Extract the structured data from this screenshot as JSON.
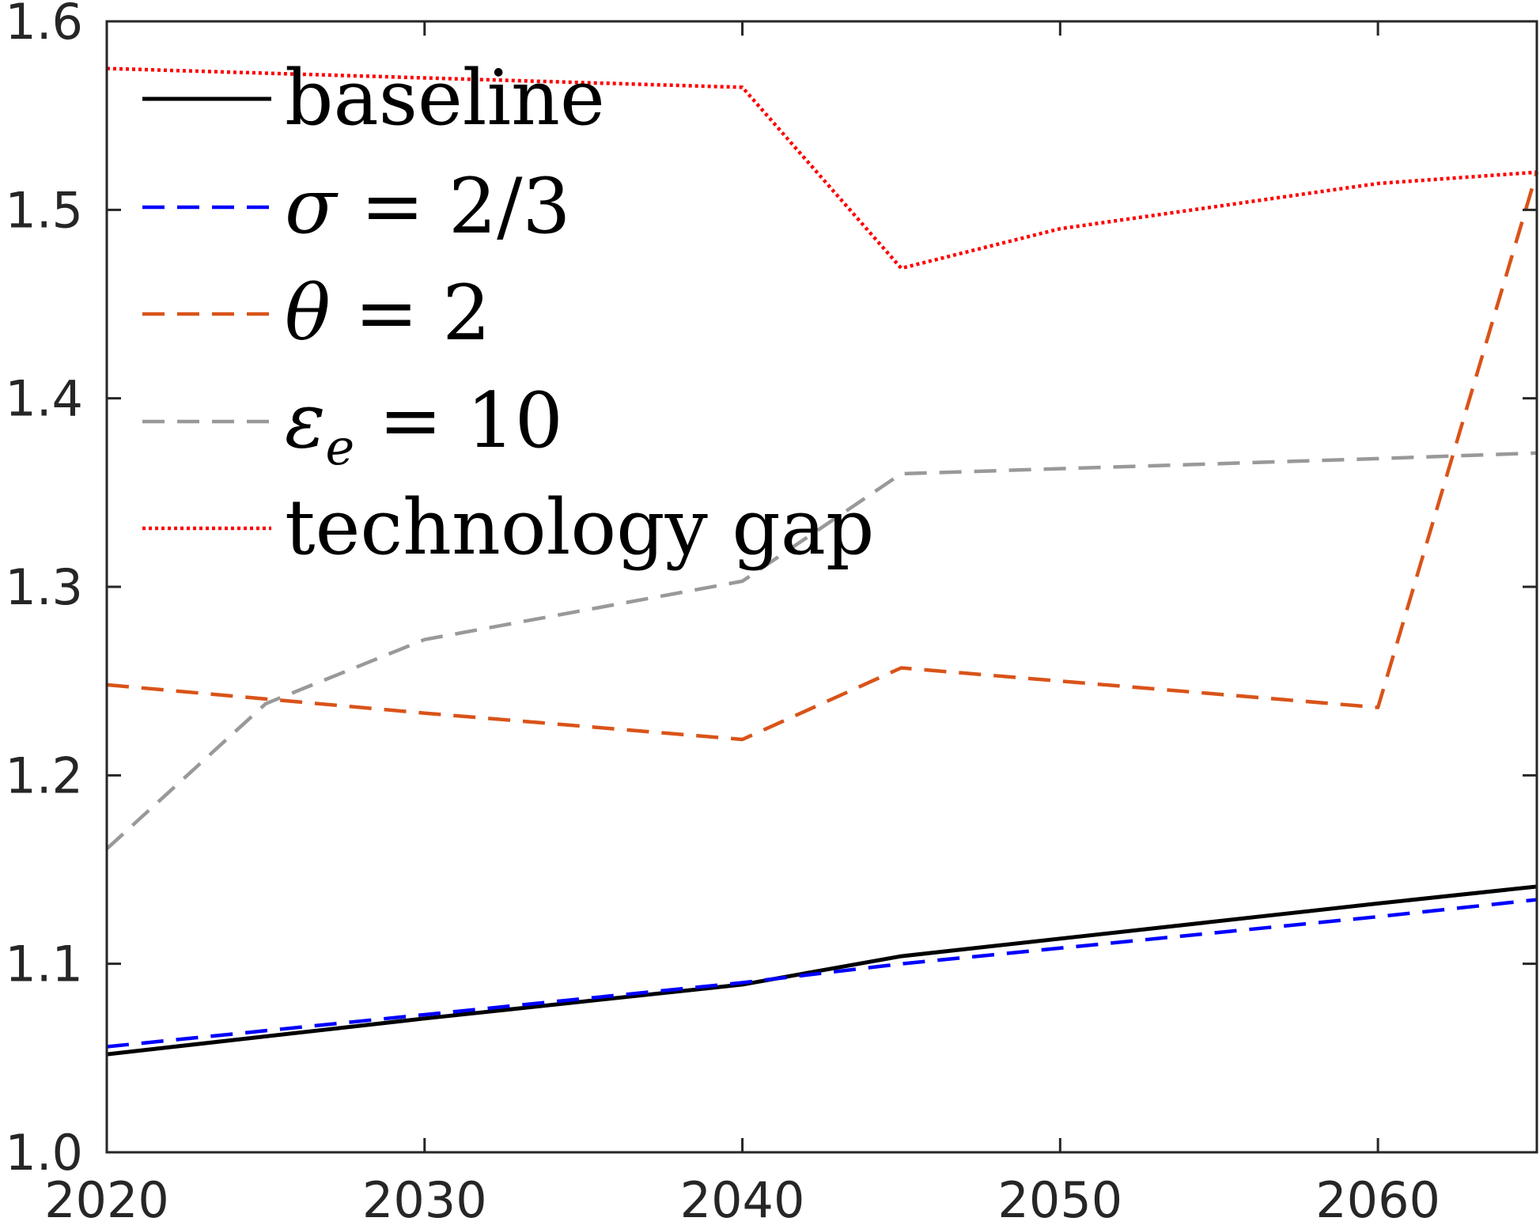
{
  "chart_data": {
    "type": "line",
    "title": "",
    "xlabel": "",
    "ylabel": "",
    "xlim": [
      2020,
      2065
    ],
    "ylim": [
      1.0,
      1.6
    ],
    "xticks": [
      2020,
      2030,
      2040,
      2050,
      2060
    ],
    "xtick_labels": [
      "2020",
      "2030",
      "2040",
      "2050",
      "2060"
    ],
    "yticks": [
      1.0,
      1.1,
      1.2,
      1.3,
      1.4,
      1.5,
      1.6
    ],
    "ytick_labels": [
      "1.0",
      "1.1",
      "1.2",
      "1.3",
      "1.4",
      "1.5",
      "1.6"
    ],
    "grid": false,
    "legend_position": "top-left",
    "series": [
      {
        "name": "baseline",
        "color": "#000000",
        "style": "solid",
        "x": [
          2020,
          2030,
          2040,
          2045,
          2060,
          2065
        ],
        "y": [
          1.052,
          1.071,
          1.089,
          1.104,
          1.132,
          1.141
        ]
      },
      {
        "name": "σ = 2/3",
        "color": "#0000ff",
        "style": "dashed",
        "x": [
          2020,
          2030,
          2040,
          2045,
          2060,
          2065
        ],
        "y": [
          1.056,
          1.073,
          1.09,
          1.1,
          1.125,
          1.134
        ]
      },
      {
        "name": "θ = 2",
        "color": "#d95319",
        "style": "dashed",
        "x": [
          2020,
          2030,
          2040,
          2045,
          2060,
          2065
        ],
        "y": [
          1.248,
          1.233,
          1.219,
          1.257,
          1.236,
          1.52
        ]
      },
      {
        "name": "εe = 10",
        "color": "#999999",
        "style": "dashed",
        "x": [
          2020,
          2025,
          2030,
          2040,
          2045,
          2060,
          2065
        ],
        "y": [
          1.161,
          1.238,
          1.272,
          1.303,
          1.36,
          1.368,
          1.371
        ]
      },
      {
        "name": "technology gap",
        "color": "#ff0000",
        "style": "dotted",
        "x": [
          2020,
          2040,
          2045,
          2050,
          2060,
          2065
        ],
        "y": [
          1.575,
          1.565,
          1.469,
          1.49,
          1.514,
          1.52
        ]
      }
    ],
    "legend": {
      "entries": [
        {
          "label": "baseline",
          "math": false
        },
        {
          "label": "σ = 2/3",
          "math": true
        },
        {
          "label": "θ = 2",
          "math": true
        },
        {
          "label": "εe = 10",
          "math": true
        },
        {
          "label": "technology gap",
          "math": false
        }
      ]
    }
  }
}
